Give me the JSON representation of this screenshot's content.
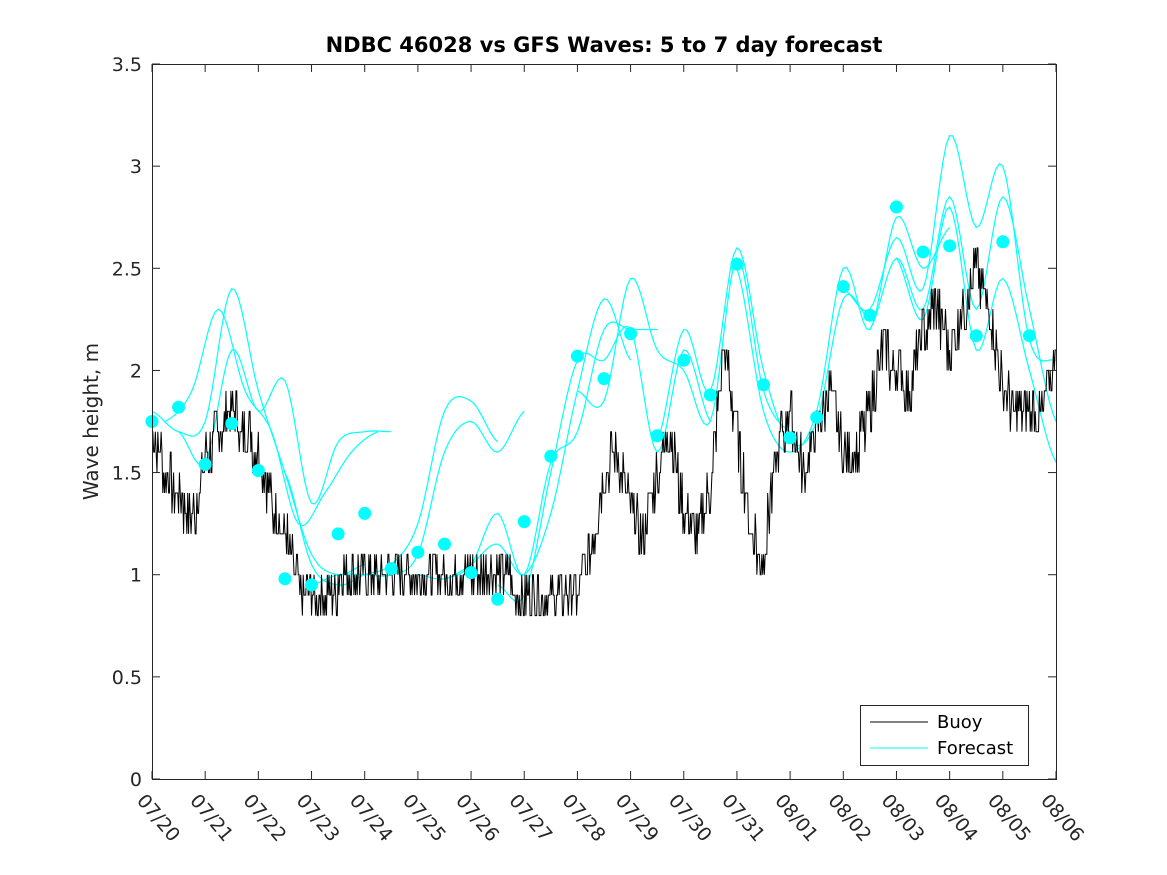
{
  "chart_data": {
    "type": "line",
    "title": "NDBC 46028 vs GFS Waves: 5 to 7 day forecast",
    "xlabel": "",
    "ylabel": "Wave height, m",
    "xlim": [
      "07/20",
      "08/06"
    ],
    "ylim": [
      0,
      3.5
    ],
    "x_tick_labels": [
      "07/20",
      "07/21",
      "07/22",
      "07/23",
      "07/24",
      "07/25",
      "07/26",
      "07/27",
      "07/28",
      "07/29",
      "07/30",
      "07/31",
      "08/01",
      "08/02",
      "08/03",
      "08/04",
      "08/05",
      "08/06"
    ],
    "y_tick_labels": [
      "0",
      "0.5",
      "1",
      "1.5",
      "2",
      "2.5",
      "3",
      "3.5"
    ],
    "y_ticks": [
      0,
      0.5,
      1,
      1.5,
      2,
      2.5,
      3,
      3.5
    ],
    "grid": false,
    "legend_position": "bottom-right",
    "colors": {
      "buoy": "#000000",
      "forecast": "#00ffff",
      "axes": "#262626"
    },
    "series": [
      {
        "name": "Buoy",
        "style": "line",
        "days": [
          0.0,
          0.25,
          0.5,
          0.75,
          1.0,
          1.25,
          1.5,
          1.75,
          2.0,
          2.25,
          2.5,
          2.75,
          3.0,
          3.25,
          3.5,
          3.75,
          4.0,
          4.25,
          4.5,
          4.75,
          5.0,
          5.25,
          5.5,
          5.75,
          6.0,
          6.25,
          6.5,
          6.75,
          7.0,
          7.25,
          7.5,
          7.75,
          8.0,
          8.25,
          8.5,
          8.75,
          9.0,
          9.25,
          9.5,
          9.75,
          10.0,
          10.25,
          10.5,
          10.75,
          11.0,
          11.25,
          11.5,
          11.75,
          12.0,
          12.25,
          12.5,
          12.75,
          13.0,
          13.25,
          13.5,
          13.75,
          14.0,
          14.25,
          14.5,
          14.75,
          15.0,
          15.25,
          15.5,
          15.75,
          16.0,
          16.25,
          16.5,
          16.75,
          17.0
        ],
        "values": [
          1.7,
          1.5,
          1.4,
          1.25,
          1.55,
          1.7,
          1.8,
          1.7,
          1.6,
          1.35,
          1.2,
          0.95,
          0.9,
          0.85,
          0.95,
          1.0,
          1.0,
          0.95,
          1.0,
          1.05,
          0.95,
          1.0,
          1.0,
          0.95,
          0.95,
          1.0,
          1.0,
          0.95,
          0.9,
          0.95,
          0.9,
          0.9,
          0.9,
          1.1,
          1.5,
          1.6,
          1.3,
          1.2,
          1.5,
          1.7,
          1.3,
          1.2,
          1.4,
          2.1,
          1.7,
          1.2,
          1.1,
          1.6,
          1.8,
          1.5,
          1.7,
          1.9,
          1.6,
          1.6,
          1.8,
          2.1,
          2.0,
          1.9,
          2.2,
          2.3,
          2.1,
          2.3,
          2.5,
          2.3,
          1.9,
          1.8,
          1.8,
          1.8,
          2.1
        ]
      },
      {
        "name": "Forecast",
        "style": "line",
        "runs": [
          {
            "days": [
              0.0,
              0.5,
              1.0,
              1.5,
              2.0,
              2.5,
              3.0,
              3.5,
              4.0
            ],
            "values": [
              1.8,
              1.7,
              1.75,
              2.4,
              1.9,
              1.5,
              1.1,
              1.0,
              1.05
            ]
          },
          {
            "days": [
              0.25,
              0.75,
              1.25,
              1.75,
              2.25,
              2.75,
              3.25,
              3.75,
              4.25
            ],
            "values": [
              1.75,
              1.9,
              2.3,
              1.9,
              1.7,
              1.25,
              1.4,
              1.6,
              1.7
            ]
          },
          {
            "days": [
              0.5,
              1.0,
              1.5,
              2.0,
              2.5,
              3.0,
              3.5,
              4.0,
              4.5
            ],
            "values": [
              1.7,
              1.55,
              2.1,
              1.8,
              1.95,
              1.35,
              1.65,
              1.7,
              1.7
            ]
          },
          {
            "days": [
              2.5,
              3.0,
              3.5,
              4.0,
              4.5,
              5.0,
              5.5,
              6.0,
              6.5
            ],
            "values": [
              1.5,
              1.05,
              0.95,
              1.0,
              1.05,
              1.25,
              1.8,
              1.85,
              1.65
            ]
          },
          {
            "days": [
              3.0,
              3.5,
              4.0,
              4.5,
              5.0,
              5.5,
              6.0,
              6.5,
              7.0
            ],
            "values": [
              0.95,
              1.0,
              1.0,
              1.0,
              1.1,
              1.6,
              1.75,
              1.6,
              1.8
            ]
          },
          {
            "days": [
              5.0,
              5.5,
              6.0,
              6.5,
              7.0,
              7.5,
              8.0,
              8.5,
              9.0
            ],
            "values": [
              1.0,
              0.98,
              1.05,
              1.15,
              1.0,
              1.3,
              1.9,
              2.35,
              2.05
            ]
          },
          {
            "days": [
              5.5,
              6.0,
              6.5,
              7.0,
              7.5,
              8.0,
              8.5,
              9.0,
              9.5
            ],
            "values": [
              0.98,
              1.05,
              1.3,
              1.0,
              1.55,
              1.7,
              2.2,
              2.2,
              2.2
            ]
          },
          {
            "days": [
              6.5,
              7.0,
              7.5,
              8.0,
              8.5,
              9.0,
              9.5,
              10.0,
              10.5
            ],
            "values": [
              0.95,
              0.9,
              1.5,
              2.05,
              2.05,
              2.2,
              1.6,
              2.1,
              1.75
            ]
          },
          {
            "days": [
              8.0,
              8.5,
              9.0,
              9.5,
              10.0,
              10.5,
              11.0,
              11.5,
              12.0
            ],
            "values": [
              1.9,
              1.85,
              2.45,
              2.1,
              2.0,
              1.75,
              2.55,
              1.9,
              1.7
            ]
          },
          {
            "days": [
              9.5,
              10.0,
              10.5,
              11.0,
              11.5,
              12.0,
              12.5,
              13.0,
              13.5
            ],
            "values": [
              1.65,
              2.2,
              1.9,
              2.6,
              2.0,
              1.65,
              1.75,
              2.35,
              2.25
            ]
          },
          {
            "days": [
              11.0,
              11.5,
              12.0,
              12.5,
              13.0,
              13.5,
              14.0,
              14.5,
              15.0
            ],
            "values": [
              2.5,
              1.8,
              1.6,
              1.8,
              2.5,
              2.2,
              2.75,
              2.5,
              2.7
            ]
          },
          {
            "days": [
              13.0,
              13.5,
              14.0,
              14.5,
              15.0,
              15.5,
              16.0,
              16.5,
              17.0
            ],
            "values": [
              2.4,
              2.3,
              2.65,
              2.4,
              3.15,
              2.7,
              3.0,
              2.15,
              2.05
            ]
          },
          {
            "days": [
              13.5,
              14.0,
              14.5,
              15.0,
              15.5,
              16.0,
              16.5,
              17.0
            ],
            "values": [
              2.2,
              2.55,
              2.3,
              2.85,
              2.3,
              2.85,
              2.3,
              1.75
            ]
          },
          {
            "days": [
              14.0,
              14.5,
              15.0,
              15.5,
              16.0,
              16.5,
              17.0
            ],
            "values": [
              2.55,
              2.25,
              2.8,
              2.1,
              2.45,
              2.0,
              1.55
            ]
          }
        ],
        "markers": {
          "days": [
            0.0,
            0.5,
            1.0,
            1.5,
            2.0,
            2.5,
            3.0,
            3.5,
            4.0,
            4.5,
            5.0,
            5.5,
            6.0,
            6.5,
            7.0,
            7.5,
            8.0,
            8.5,
            9.0,
            9.5,
            10.0,
            10.5,
            11.0,
            11.5,
            12.0,
            12.5,
            13.0,
            13.5,
            14.0,
            14.5,
            15.0,
            15.5,
            16.0,
            16.5
          ],
          "values": [
            1.75,
            1.82,
            1.54,
            1.74,
            1.51,
            0.98,
            0.95,
            1.2,
            1.3,
            1.03,
            1.11,
            1.15,
            1.01,
            0.88,
            1.26,
            1.58,
            2.07,
            1.96,
            2.18,
            1.68,
            2.05,
            1.88,
            2.52,
            1.93,
            1.67,
            1.77,
            2.41,
            2.27,
            2.8,
            2.58,
            2.61,
            2.17,
            2.63,
            2.17
          ]
        }
      }
    ]
  }
}
